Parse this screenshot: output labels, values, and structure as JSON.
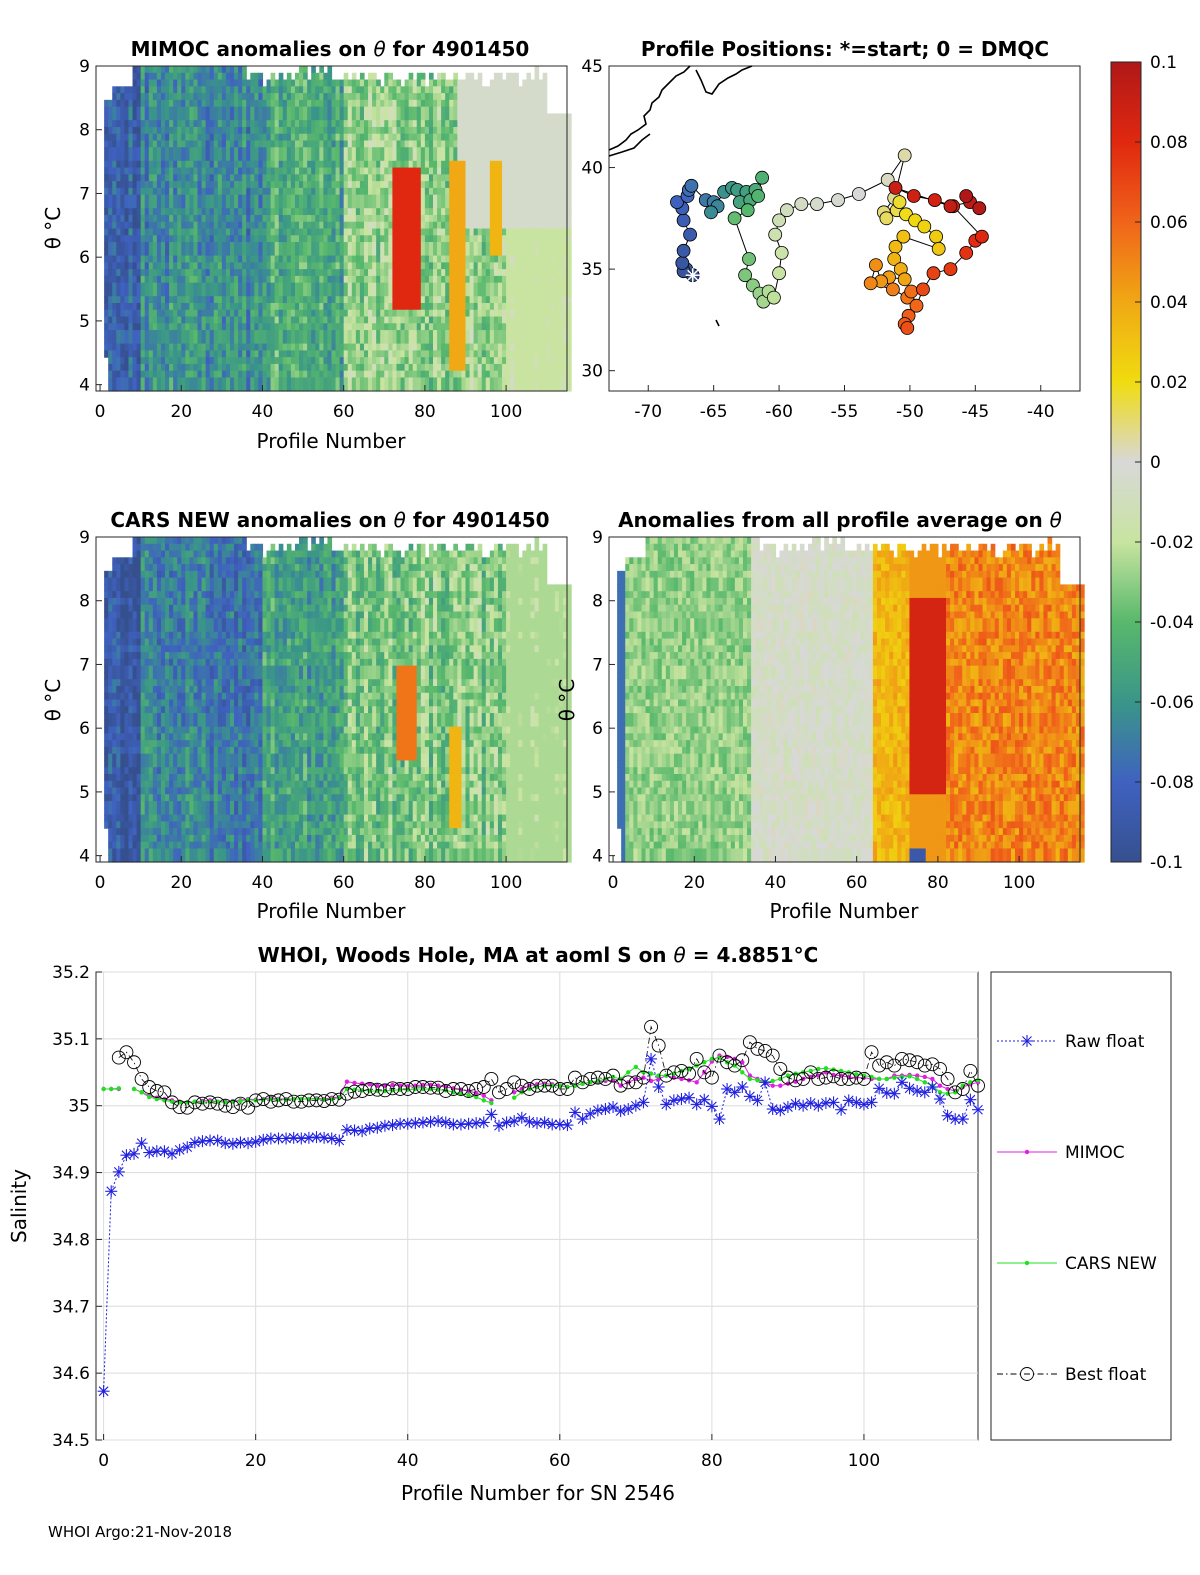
{
  "panels": {
    "mimoc": {
      "title_prefix": "MIMOC anomalies on ",
      "title_theta": "θ",
      "title_suffix": "  for 4901450",
      "xlabel": "Profile Number",
      "ylabel": "θ °C"
    },
    "positions": {
      "title": "Profile Positions: *=start; 0 = DMQC"
    },
    "cars": {
      "title_prefix": "CARS NEW anomalies on ",
      "title_theta": "θ",
      "title_suffix": " for 4901450",
      "xlabel": "Profile Number",
      "ylabel": "θ °C"
    },
    "allavg": {
      "title_prefix": "Anomalies from all profile average on ",
      "title_theta": "θ",
      "xlabel": "Profile Number",
      "ylabel": "θ °C"
    },
    "salinity": {
      "title_prefix": "WHOI, Woods Hole, MA at aoml S on ",
      "title_theta": "θ",
      "title_suffix": " = 4.8851",
      "title_unit": "°C",
      "xlabel": "Profile Number for SN 2546",
      "ylabel": "Salinity"
    }
  },
  "colorbar": {
    "ticks": [
      "0.1",
      "0.08",
      "0.06",
      "0.04",
      "0.02",
      "0",
      "-0.02",
      "-0.04",
      "-0.06",
      "-0.08",
      "-0.1"
    ]
  },
  "footer": "WHOI Argo:21-Nov-2018",
  "chart_data": [
    {
      "type": "heatmap",
      "id": "mimoc",
      "title": "MIMOC anomalies on θ for 4901450",
      "xlabel": "Profile Number",
      "ylabel": "θ °C",
      "xlim": [
        -1,
        115
      ],
      "ylim": [
        3.9,
        9
      ],
      "xticks": [
        0,
        20,
        40,
        60,
        80,
        100
      ],
      "yticks": [
        4,
        5,
        6,
        7,
        8,
        9
      ],
      "clim": [
        -0.1,
        0.1
      ]
    },
    {
      "type": "scatter",
      "id": "positions",
      "title": "Profile Positions: *=start; 0 = DMQC",
      "xlim": [
        -73,
        -37
      ],
      "ylim": [
        29,
        45
      ],
      "xticks": [
        -70,
        -65,
        -60,
        -55,
        -50,
        -45,
        -40
      ],
      "yticks": [
        30,
        35,
        40,
        45
      ],
      "start": [
        -66.6,
        34.7
      ]
    },
    {
      "type": "heatmap",
      "id": "cars",
      "title": "CARS NEW anomalies on θ for 4901450",
      "xlabel": "Profile Number",
      "ylabel": "θ °C",
      "xlim": [
        -1,
        115
      ],
      "ylim": [
        3.9,
        9
      ],
      "xticks": [
        0,
        20,
        40,
        60,
        80,
        100
      ],
      "yticks": [
        4,
        5,
        6,
        7,
        8,
        9
      ],
      "clim": [
        -0.1,
        0.1
      ]
    },
    {
      "type": "heatmap",
      "id": "allavg",
      "title": "Anomalies from all profile average on θ",
      "xlabel": "Profile Number",
      "xlim": [
        -1,
        115
      ],
      "ylim": [
        3.9,
        9
      ],
      "xticks": [
        0,
        20,
        40,
        60,
        80,
        100
      ],
      "yticks": [
        4,
        5,
        6,
        7,
        8,
        9
      ],
      "clim": [
        -0.1,
        0.1
      ]
    },
    {
      "type": "line",
      "id": "salinity",
      "title": "WHOI, Woods Hole, MA at aoml S on θ = 4.8851°C",
      "xlabel": "Profile Number for SN 2546",
      "ylabel": "Salinity",
      "xlim": [
        -1,
        115
      ],
      "ylim": [
        34.5,
        35.2
      ],
      "xticks": [
        0,
        20,
        40,
        60,
        80,
        100
      ],
      "yticks": [
        34.5,
        34.6,
        34.7,
        34.8,
        34.9,
        35,
        35.1,
        35.2
      ],
      "ytick_labels": [
        "34.5",
        "34.6",
        "34.7",
        "34.8",
        "34.9",
        "35",
        "35.1",
        "35.2"
      ],
      "grid": true,
      "legend_position": "right",
      "series": [
        {
          "name": "Raw float",
          "color": "#2020e0",
          "marker": "asterisk",
          "values": [
            34.573,
            34.872,
            34.901,
            34.926,
            34.928,
            34.944,
            34.93,
            34.932,
            34.932,
            34.928,
            34.934,
            34.938,
            34.945,
            34.947,
            34.948,
            34.948,
            34.944,
            34.943,
            34.945,
            34.944,
            34.946,
            34.949,
            34.951,
            34.951,
            34.951,
            34.952,
            34.951,
            34.952,
            34.953,
            34.952,
            34.951,
            34.948,
            34.964,
            34.963,
            34.962,
            34.966,
            34.967,
            34.97,
            34.971,
            34.973,
            34.973,
            34.974,
            34.975,
            34.976,
            34.977,
            34.975,
            34.972,
            34.972,
            34.973,
            34.974,
            34.975,
            34.987,
            34.97,
            34.975,
            34.977,
            34.982,
            34.976,
            34.974,
            34.975,
            34.972,
            34.972,
            34.971,
            34.99,
            34.98,
            34.988,
            34.993,
            34.995,
            34.998,
            34.992,
            34.995,
            35.0,
            35.005,
            35.07,
            35.028,
            35.002,
            35.008,
            35.01,
            35.012,
            35.002,
            35.009,
            34.999,
            34.98,
            35.025,
            35.02,
            35.028,
            35.014,
            35.008,
            35.035,
            34.995,
            34.993,
            34.998,
            35.003,
            35.0,
            35.004,
            35.0,
            35.004,
            35.005,
            34.994,
            35.008,
            35.005,
            35.002,
            35.005,
            35.026,
            35.019,
            35.018,
            35.035,
            35.026,
            35.022,
            35.02,
            35.028,
            35.01,
            34.985,
            34.98,
            34.98,
            35.009,
            34.994
          ]
        },
        {
          "name": "MIMOC",
          "color": "#e020e0",
          "marker": "dot",
          "values": [
            35.025,
            35.025,
            35.025,
            null,
            35.025,
            35.02,
            35.015,
            35.012,
            35.01,
            35.008,
            35.006,
            35.005,
            35.006,
            35.007,
            35.008,
            35.006,
            35.006,
            35.007,
            35.008,
            35.01,
            35.009,
            35.01,
            35.012,
            35.01,
            35.01,
            35.01,
            35.01,
            35.01,
            35.011,
            35.01,
            35.012,
            35.013,
            35.036,
            35.034,
            35.033,
            35.032,
            35.03,
            35.03,
            35.031,
            35.03,
            35.029,
            35.03,
            35.031,
            35.031,
            35.03,
            35.028,
            35.026,
            35.024,
            35.022,
            35.019,
            35.015,
            35.008,
            null,
            null,
            35.02,
            35.025,
            35.03,
            35.032,
            35.033,
            35.032,
            35.03,
            35.028,
            35.03,
            35.033,
            35.035,
            35.036,
            35.037,
            35.038,
            35.03,
            35.035,
            35.04,
            35.042,
            35.037,
            35.04,
            35.045,
            35.042,
            35.04,
            35.038,
            35.035,
            35.05,
            35.066,
            35.075,
            35.073,
            35.07,
            35.065,
            35.045,
            35.04,
            35.035,
            35.03,
            35.03,
            35.033,
            35.036,
            35.04,
            35.043,
            35.045,
            35.05,
            35.046,
            35.045,
            35.043,
            35.042,
            35.042,
            35.04,
            35.04,
            35.04,
            35.045,
            35.045,
            35.046,
            35.045,
            35.043,
            35.04,
            35.03,
            35.025,
            35.022,
            35.028,
            35.032,
            35.035
          ]
        },
        {
          "name": "CARS NEW",
          "color": "#20e020",
          "marker": "dot",
          "values": [
            35.025,
            35.025,
            35.026,
            null,
            35.025,
            35.02,
            35.013,
            35.01,
            35.008,
            35.006,
            35.005,
            35.005,
            35.006,
            35.005,
            35.006,
            35.006,
            35.005,
            35.006,
            35.007,
            35.009,
            35.008,
            35.009,
            35.01,
            35.009,
            35.009,
            35.01,
            35.01,
            35.01,
            35.01,
            35.009,
            35.01,
            35.012,
            35.025,
            35.024,
            35.023,
            35.022,
            35.022,
            35.022,
            35.023,
            35.024,
            35.024,
            35.025,
            35.025,
            35.025,
            35.024,
            35.023,
            35.02,
            35.018,
            35.016,
            35.013,
            35.008,
            35.004,
            null,
            null,
            35.012,
            35.02,
            35.025,
            35.028,
            35.03,
            35.03,
            35.03,
            35.028,
            35.03,
            35.033,
            35.035,
            35.037,
            35.04,
            35.043,
            35.04,
            35.05,
            35.058,
            35.05,
            35.048,
            35.045,
            35.045,
            35.048,
            35.052,
            35.055,
            35.06,
            35.065,
            35.07,
            35.072,
            35.065,
            35.06,
            35.05,
            35.04,
            35.038,
            35.035,
            35.037,
            35.04,
            35.045,
            35.048,
            35.05,
            35.052,
            35.055,
            35.056,
            35.054,
            35.052,
            35.05,
            35.047,
            35.045,
            35.043,
            35.04,
            35.04,
            35.042,
            35.043,
            35.044,
            35.04,
            35.035,
            35.03,
            35.02,
            35.018,
            35.02,
            35.03,
            35.035,
            35.038
          ]
        },
        {
          "name": "Best float",
          "color": "#000000",
          "marker": "circle",
          "values": [
            null,
            null,
            35.072,
            35.08,
            35.065,
            35.04,
            35.028,
            35.022,
            35.02,
            35.005,
            34.998,
            34.997,
            35.005,
            35.003,
            35.005,
            35.003,
            35.0,
            34.998,
            35.003,
            34.997,
            35.008,
            35.01,
            35.006,
            35.008,
            35.01,
            35.006,
            35.006,
            35.008,
            35.008,
            35.007,
            35.01,
            35.009,
            35.018,
            35.021,
            35.022,
            35.025,
            35.024,
            35.023,
            35.026,
            35.025,
            35.025,
            35.028,
            35.028,
            35.027,
            35.027,
            35.022,
            35.025,
            35.025,
            35.022,
            35.025,
            35.028,
            35.04,
            35.02,
            35.025,
            35.035,
            35.03,
            35.025,
            35.03,
            35.03,
            35.03,
            35.025,
            35.025,
            35.042,
            35.035,
            35.04,
            35.042,
            35.04,
            35.045,
            35.03,
            35.035,
            35.035,
            35.042,
            35.118,
            35.09,
            35.045,
            35.05,
            35.052,
            35.048,
            35.07,
            35.05,
            35.042,
            35.075,
            35.065,
            35.06,
            35.068,
            35.095,
            35.085,
            35.082,
            35.075,
            35.055,
            35.042,
            35.038,
            35.04,
            35.05,
            35.04,
            35.042,
            35.044,
            35.04,
            35.04,
            35.042,
            35.04,
            35.08,
            35.06,
            35.065,
            35.06,
            35.07,
            35.068,
            35.065,
            35.06,
            35.062,
            35.055,
            35.04,
            35.02,
            35.025,
            35.052,
            35.03
          ]
        }
      ]
    }
  ]
}
